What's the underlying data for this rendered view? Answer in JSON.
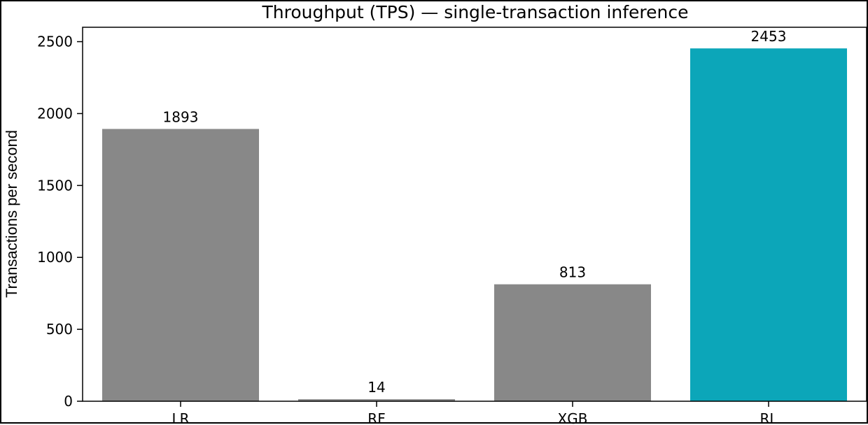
{
  "chart_data": {
    "type": "bar",
    "title": "Throughput (TPS) — single-transaction inference",
    "xlabel": "",
    "ylabel": "Transactions per second",
    "categories": [
      "LR",
      "RF",
      "XGB",
      "RL"
    ],
    "values": [
      1893,
      14,
      813,
      2453
    ],
    "data_labels": [
      "1893",
      "14",
      "813",
      "2453"
    ],
    "ylim": [
      0,
      2600
    ],
    "yticks": [
      0,
      500,
      1000,
      1500,
      2000,
      2500
    ],
    "ytick_labels": [
      "0",
      "500",
      "1000",
      "1500",
      "2000",
      "2500"
    ],
    "grid": false,
    "legend": "none",
    "colors": {
      "default_bar": "#888888",
      "highlight_bar": "#0ca6b9",
      "highlight_category": "RL"
    }
  }
}
